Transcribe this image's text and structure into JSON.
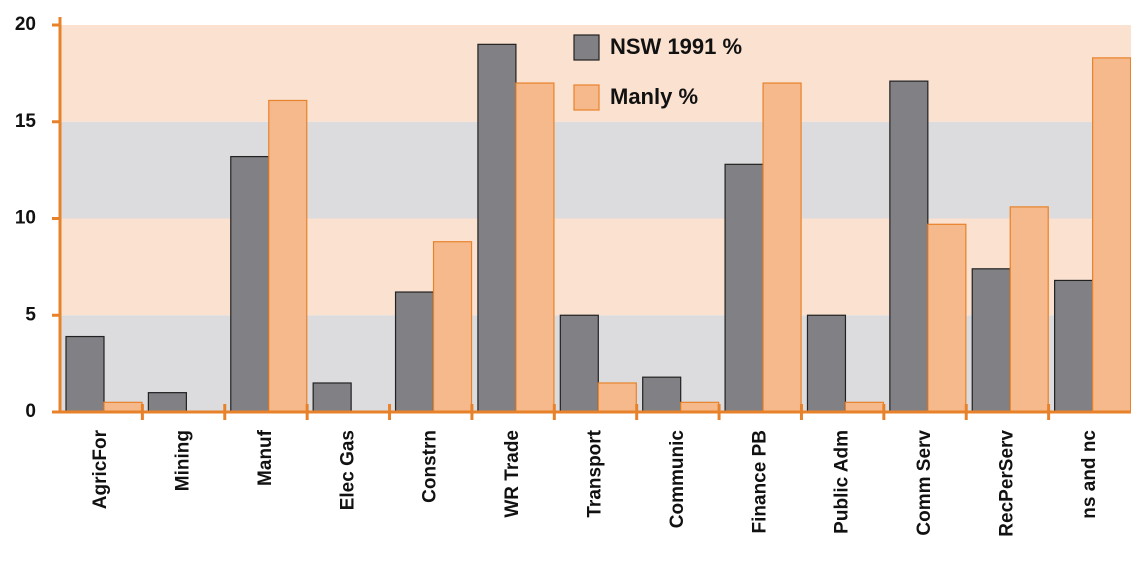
{
  "chart_data": {
    "type": "bar",
    "categories": [
      "AgricFor",
      "Mining",
      "Manuf",
      "Elec Gas",
      "Constrn",
      "WR Trade",
      "Transport",
      "Communic",
      "Finance PB",
      "Public Adm",
      "Comm Serv",
      "RecPerServ",
      "ns and nc"
    ],
    "series": [
      {
        "name": "NSW 1991 %",
        "color": "#808085",
        "values": [
          3.9,
          1.0,
          13.2,
          1.5,
          6.2,
          19.0,
          5.0,
          1.8,
          12.8,
          5.0,
          17.1,
          7.4,
          6.8
        ]
      },
      {
        "name": "Manly %",
        "color": "#f5b98c",
        "values": [
          0.5,
          0.0,
          16.1,
          0.0,
          8.8,
          17.0,
          1.5,
          0.5,
          17.0,
          0.5,
          9.7,
          10.6,
          18.3
        ]
      }
    ],
    "ylim": [
      0,
      20
    ],
    "yticks": [
      0,
      5,
      10,
      15,
      20
    ],
    "band_colors": [
      "#dcdcde",
      "#fbe1cf"
    ],
    "axis_color": "#e8822a"
  }
}
